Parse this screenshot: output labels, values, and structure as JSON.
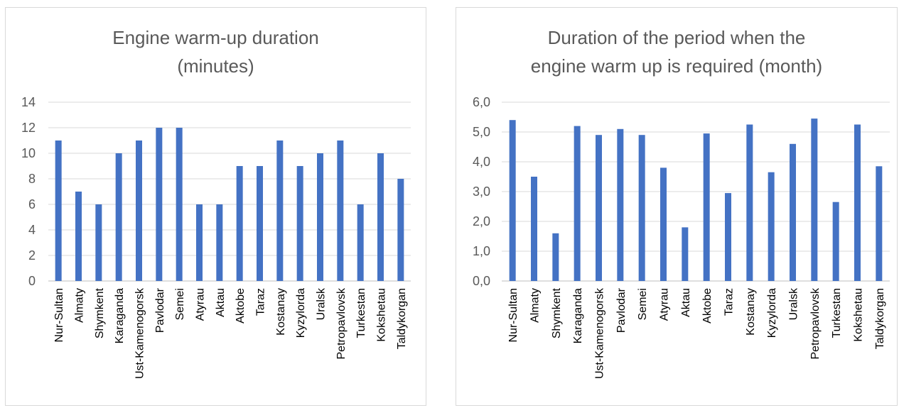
{
  "colors": {
    "bar": "#4472c4",
    "grid": "#d9d9d9",
    "axis": "#bfbfbf"
  },
  "chart_data": [
    {
      "type": "bar",
      "title_lines": [
        "Engine warm-up duration",
        "(minutes)"
      ],
      "xlabel": "",
      "ylabel": "",
      "ylim": [
        0,
        14
      ],
      "yticks": [
        0,
        2,
        4,
        6,
        8,
        10,
        12,
        14
      ],
      "ytick_labels": [
        "0",
        "2",
        "4",
        "6",
        "8",
        "10",
        "12",
        "14"
      ],
      "grid": true,
      "categories": [
        "Nur-Sultan",
        "Almaty",
        "Shymkent",
        "Karaganda",
        "Ust-Kamenogorsk",
        "Pavlodar",
        "Semei",
        "Atyrau",
        "Aktau",
        "Aktobe",
        "Taraz",
        "Kostanay",
        "Kyzylorda",
        "Uralsk",
        "Petropavlovsk",
        "Turkestan",
        "Kokshetau",
        "Taldykorgan"
      ],
      "values": [
        11,
        7,
        6,
        10,
        11,
        12,
        12,
        6,
        6,
        9,
        9,
        11,
        9,
        10,
        11,
        6,
        10,
        8
      ]
    },
    {
      "type": "bar",
      "title_lines": [
        "Duration of the period when the",
        "engine warm up is required (month)"
      ],
      "xlabel": "",
      "ylabel": "",
      "ylim": [
        0,
        6
      ],
      "yticks": [
        0,
        1,
        2,
        3,
        4,
        5,
        6
      ],
      "ytick_labels": [
        "0,0",
        "1,0",
        "2,0",
        "3,0",
        "4,0",
        "5,0",
        "6,0"
      ],
      "grid": true,
      "categories": [
        "Nur-Sultan",
        "Almaty",
        "Shymkent",
        "Karaganda",
        "Ust-Kamenogorsk",
        "Pavlodar",
        "Semei",
        "Atyrau",
        "Aktau",
        "Aktobe",
        "Taraz",
        "Kostanay",
        "Kyzylorda",
        "Uralsk",
        "Petropavlovsk",
        "Turkestan",
        "Kokshetau",
        "Taldykorgan"
      ],
      "values": [
        5.4,
        3.5,
        1.6,
        5.2,
        4.9,
        5.1,
        4.9,
        3.8,
        1.8,
        4.95,
        2.95,
        5.25,
        3.65,
        4.6,
        5.45,
        2.65,
        5.25,
        3.85
      ]
    }
  ]
}
